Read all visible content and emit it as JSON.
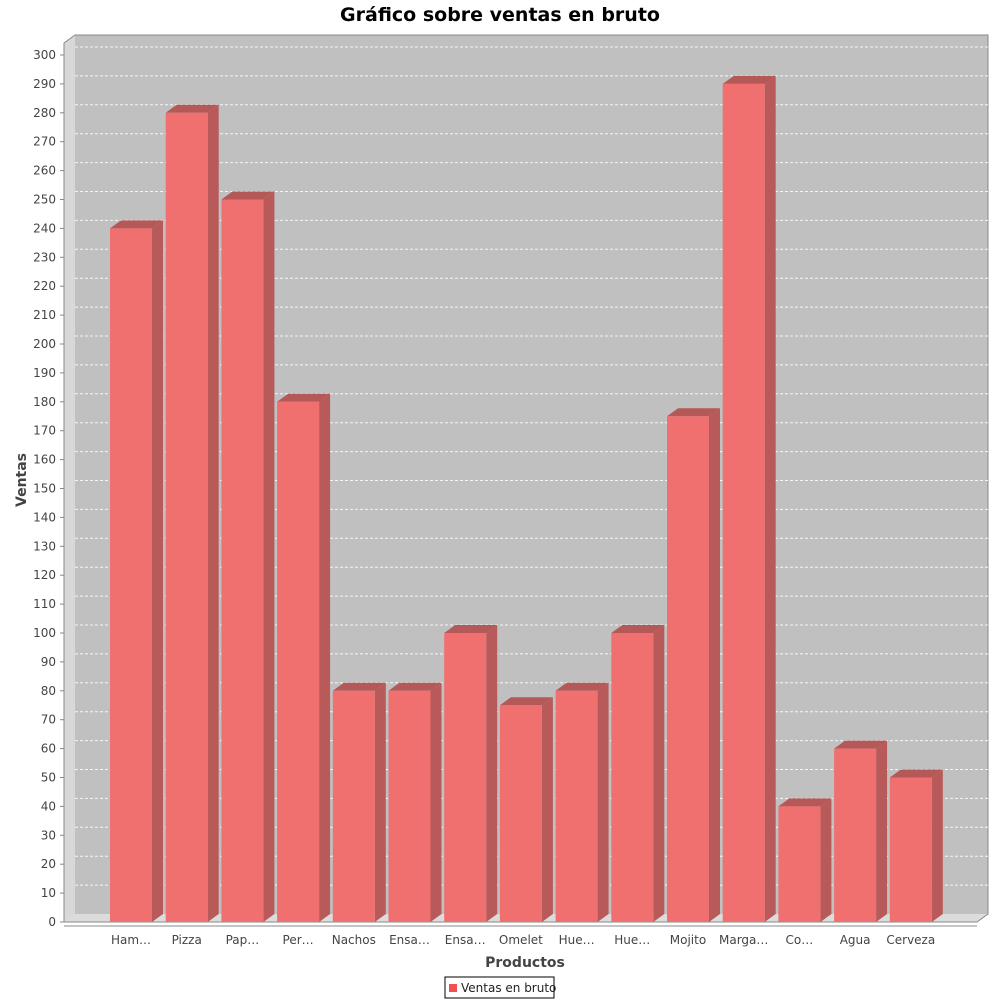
{
  "chart_data": {
    "type": "bar",
    "title": "Gráfico sobre ventas en bruto",
    "xlabel": "Productos",
    "ylabel": "Ventas",
    "categories": [
      "Ham…",
      "Pizza",
      "Pap…",
      "Per…",
      "Nachos",
      "Ensa…",
      "Ensa…",
      "Omelet",
      "Hue…",
      "Hue…",
      "Mojito",
      "Marga…",
      "Co…",
      "Agua",
      "Cerveza"
    ],
    "series": [
      {
        "name": "Ventas en bruto",
        "values": [
          240,
          280,
          250,
          180,
          80,
          80,
          100,
          75,
          80,
          100,
          175,
          290,
          40,
          60,
          50
        ]
      }
    ],
    "ylim": [
      0,
      300
    ],
    "ytick_step": 10,
    "grid": true,
    "legend_position": "bottom-center",
    "colors": {
      "bar_front": "#f07070",
      "bar_top": "#b55858",
      "bar_side": "#b85a5a",
      "plot_bg": "#c0c0c0",
      "wall_left": "#d8d8d8",
      "floor": "#dcdcdc",
      "gridline": "#ffffff",
      "legend_swatch": "#f05050"
    }
  }
}
